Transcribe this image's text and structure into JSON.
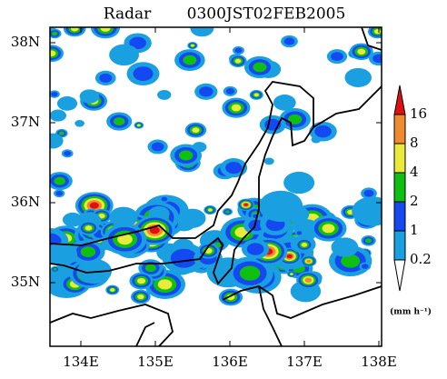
{
  "title": {
    "left": "Radar",
    "right": "0300JST02FEB2005"
  },
  "axes": {
    "lat": [
      "38N",
      "37N",
      "36N",
      "35N"
    ],
    "lon": [
      "134E",
      "135E",
      "136E",
      "137E",
      "138E"
    ]
  },
  "colorbar": {
    "levels": [
      "0.2",
      "1",
      "2",
      "4",
      "8",
      "16"
    ],
    "colors": [
      "#1aa0e0",
      "#1448f0",
      "#10c010",
      "#eaea3a",
      "#f08a30",
      "#e01010"
    ],
    "unit": "(mm h⁻¹)"
  }
}
